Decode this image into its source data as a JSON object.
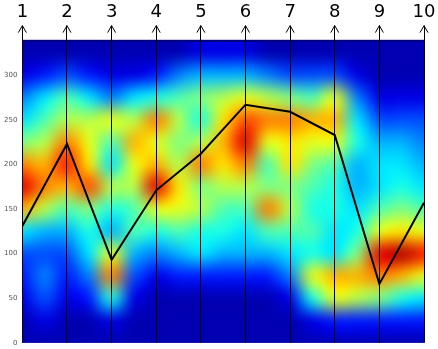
{
  "chart_data": {
    "type": "line",
    "x": [
      1,
      2,
      3,
      4,
      5,
      6,
      7,
      8,
      9,
      10
    ],
    "values": [
      131,
      223,
      93,
      171,
      212,
      267,
      259,
      233,
      66,
      157
    ],
    "color": "#000000",
    "marker": "none",
    "xlim": [
      1,
      10
    ],
    "xticks": [
      1,
      2,
      3,
      4,
      5,
      6,
      7,
      8,
      9,
      10
    ],
    "ylim": [
      0,
      340
    ],
    "yticks": [
      0,
      50,
      100,
      150,
      200,
      250,
      300
    ],
    "grid": "x",
    "heatmap": {
      "x": [
        1,
        1.5,
        2,
        2.5,
        3,
        3.5,
        4,
        4.5,
        5,
        5.5,
        6,
        6.5,
        7,
        7.5,
        8,
        8.5,
        9,
        9.5,
        10
      ],
      "y": [
        325,
        300,
        275,
        250,
        225,
        200,
        175,
        150,
        125,
        100,
        75,
        50,
        25,
        0
      ],
      "zlim": [
        0,
        1
      ],
      "cells": [
        [
          0.05,
          0.1,
          0.25,
          0.35,
          0.5,
          0.75,
          0.9,
          0.7,
          0.35,
          0.2,
          0.15,
          0.1,
          0.05,
          0.05
        ],
        [
          0.05,
          0.15,
          0.35,
          0.45,
          0.55,
          0.7,
          0.75,
          0.55,
          0.3,
          0.2,
          0.25,
          0.2,
          0.1,
          0.05
        ],
        [
          0.05,
          0.2,
          0.45,
          0.55,
          0.75,
          0.85,
          0.7,
          0.45,
          0.3,
          0.2,
          0.15,
          0.1,
          0.05,
          0.05
        ],
        [
          0.05,
          0.15,
          0.35,
          0.55,
          0.6,
          0.65,
          0.8,
          0.5,
          0.4,
          0.35,
          0.25,
          0.15,
          0.05,
          0.05
        ],
        [
          0.05,
          0.1,
          0.25,
          0.6,
          0.45,
          0.35,
          0.55,
          0.4,
          0.3,
          0.6,
          0.75,
          0.4,
          0.1,
          0.05
        ],
        [
          0.05,
          0.1,
          0.35,
          0.55,
          0.7,
          0.6,
          0.55,
          0.45,
          0.45,
          0.3,
          0.2,
          0.1,
          0.05,
          0.05
        ],
        [
          0.05,
          0.15,
          0.4,
          0.75,
          0.6,
          0.7,
          0.9,
          0.6,
          0.4,
          0.25,
          0.1,
          0.05,
          0.05,
          0.05
        ],
        [
          0.05,
          0.25,
          0.45,
          0.55,
          0.5,
          0.55,
          0.65,
          0.6,
          0.45,
          0.3,
          0.15,
          0.05,
          0.05,
          0.05
        ],
        [
          0.1,
          0.3,
          0.5,
          0.4,
          0.55,
          0.75,
          0.5,
          0.55,
          0.4,
          0.35,
          0.15,
          0.05,
          0.05,
          0.05
        ],
        [
          0.1,
          0.3,
          0.55,
          0.65,
          0.7,
          0.65,
          0.55,
          0.45,
          0.4,
          0.3,
          0.15,
          0.05,
          0.05,
          0.05
        ],
        [
          0.1,
          0.3,
          0.6,
          0.8,
          0.9,
          0.75,
          0.55,
          0.45,
          0.35,
          0.3,
          0.15,
          0.05,
          0.05,
          0.05
        ],
        [
          0.05,
          0.25,
          0.55,
          0.75,
          0.6,
          0.45,
          0.5,
          0.75,
          0.45,
          0.3,
          0.15,
          0.05,
          0.05,
          0.05
        ],
        [
          0.05,
          0.2,
          0.5,
          0.75,
          0.65,
          0.65,
          0.5,
          0.55,
          0.45,
          0.35,
          0.25,
          0.1,
          0.05,
          0.05
        ],
        [
          0.05,
          0.2,
          0.45,
          0.7,
          0.6,
          0.5,
          0.45,
          0.4,
          0.45,
          0.4,
          0.6,
          0.4,
          0.1,
          0.05
        ],
        [
          0.05,
          0.2,
          0.6,
          0.7,
          0.6,
          0.45,
          0.4,
          0.4,
          0.35,
          0.35,
          0.7,
          0.6,
          0.15,
          0.05
        ],
        [
          0.05,
          0.1,
          0.25,
          0.35,
          0.4,
          0.3,
          0.3,
          0.35,
          0.4,
          0.5,
          0.7,
          0.55,
          0.15,
          0.05
        ],
        [
          0.05,
          0.05,
          0.1,
          0.2,
          0.3,
          0.35,
          0.35,
          0.45,
          0.6,
          0.9,
          0.75,
          0.5,
          0.15,
          0.05
        ],
        [
          0.05,
          0.05,
          0.1,
          0.2,
          0.3,
          0.35,
          0.4,
          0.5,
          0.65,
          0.95,
          0.7,
          0.4,
          0.15,
          0.05
        ],
        [
          0.05,
          0.05,
          0.1,
          0.2,
          0.25,
          0.3,
          0.35,
          0.45,
          0.6,
          0.85,
          0.6,
          0.35,
          0.15,
          0.05
        ]
      ]
    }
  }
}
